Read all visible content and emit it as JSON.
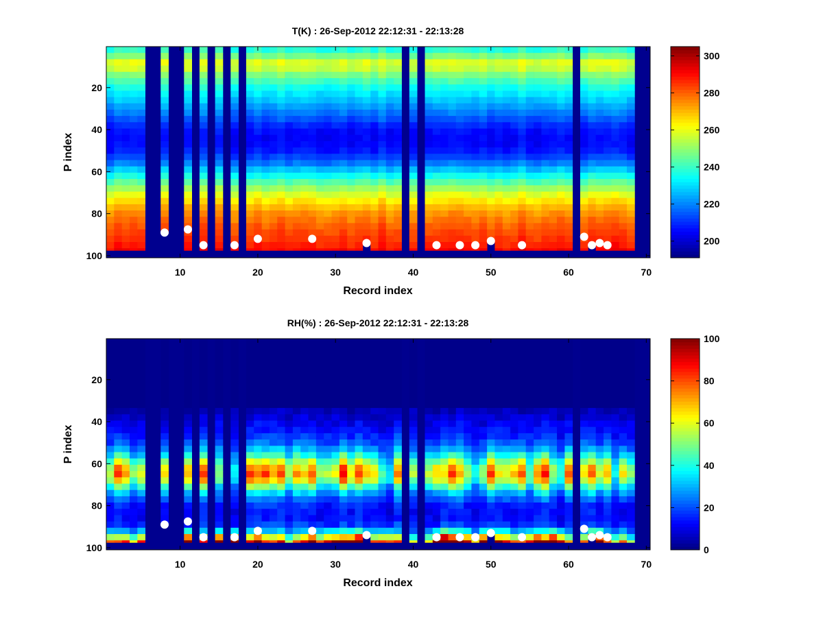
{
  "figure": {
    "background": "#ffffff",
    "missing_color": "#00008f",
    "marker_color": "#ffffff"
  },
  "chart_data": [
    {
      "type": "heatmap",
      "id": "temperature",
      "title": "T(K) : 26-Sep-2012 22:12:31 - 22:13:28",
      "xlabel": "Record index",
      "ylabel": "P index",
      "xlim": [
        0.5,
        70.5
      ],
      "ylim": [
        0.5,
        101
      ],
      "y_reversed": true,
      "xticks": [
        10,
        20,
        30,
        40,
        50,
        60,
        70
      ],
      "yticks": [
        20,
        40,
        60,
        80,
        100
      ],
      "colormap": "jet",
      "clim": [
        191,
        305
      ],
      "colorbar_ticks": [
        200,
        220,
        240,
        260,
        280,
        300
      ],
      "colorbar_location": "right",
      "records": 70,
      "levels": 101,
      "valid_level_max": 97,
      "missing_records": [
        6,
        7,
        9,
        10,
        12,
        14,
        16,
        18,
        39,
        41,
        61,
        69,
        70
      ],
      "profile": {
        "p_index": [
          1,
          5,
          9,
          13,
          20,
          30,
          40,
          45,
          50,
          55,
          60,
          65,
          70,
          75,
          80,
          85,
          90,
          95,
          97
        ],
        "value": [
          236,
          248,
          262,
          250,
          236,
          222,
          207,
          205,
          208,
          216,
          230,
          244,
          257,
          267,
          275,
          280,
          284,
          288,
          291
        ]
      },
      "surface_markers": [
        {
          "record": 8,
          "p_index": 89
        },
        {
          "record": 11,
          "p_index": 87.5
        },
        {
          "record": 13,
          "p_index": 95
        },
        {
          "record": 17,
          "p_index": 95
        },
        {
          "record": 20,
          "p_index": 92
        },
        {
          "record": 27,
          "p_index": 92
        },
        {
          "record": 34,
          "p_index": 94
        },
        {
          "record": 43,
          "p_index": 95
        },
        {
          "record": 46,
          "p_index": 95
        },
        {
          "record": 48,
          "p_index": 95
        },
        {
          "record": 50,
          "p_index": 93
        },
        {
          "record": 54,
          "p_index": 95
        },
        {
          "record": 62,
          "p_index": 91
        },
        {
          "record": 63,
          "p_index": 95
        },
        {
          "record": 64,
          "p_index": 94
        },
        {
          "record": 65,
          "p_index": 95
        }
      ]
    },
    {
      "type": "heatmap",
      "id": "humidity",
      "title": "RH(%) : 26-Sep-2012 22:12:31 - 22:13:28",
      "xlabel": "Record index",
      "ylabel": "P index",
      "xlim": [
        0.5,
        70.5
      ],
      "ylim": [
        0.5,
        101
      ],
      "y_reversed": true,
      "xticks": [
        10,
        20,
        30,
        40,
        50,
        60,
        70
      ],
      "yticks": [
        20,
        40,
        60,
        80,
        100
      ],
      "colormap": "jet",
      "clim": [
        0,
        100
      ],
      "colorbar_ticks": [
        0,
        20,
        40,
        60,
        80,
        100
      ],
      "colorbar_location": "right",
      "records": 70,
      "levels": 101,
      "valid_level_max": 97,
      "missing_records": [
        6,
        7,
        9,
        10,
        12,
        14,
        16,
        18,
        39,
        41,
        61,
        69,
        70
      ],
      "profile": {
        "p_index": [
          1,
          30,
          36,
          40,
          45,
          50,
          55,
          58,
          62,
          66,
          69,
          72,
          76,
          80,
          85,
          90,
          93,
          96,
          97
        ],
        "value": [
          1,
          1,
          6,
          10,
          14,
          20,
          32,
          45,
          60,
          66,
          52,
          36,
          22,
          15,
          12,
          18,
          35,
          62,
          78
        ]
      },
      "surface_markers": [
        {
          "record": 8,
          "p_index": 89
        },
        {
          "record": 11,
          "p_index": 87.5
        },
        {
          "record": 13,
          "p_index": 95
        },
        {
          "record": 17,
          "p_index": 95
        },
        {
          "record": 20,
          "p_index": 92
        },
        {
          "record": 27,
          "p_index": 92
        },
        {
          "record": 34,
          "p_index": 94
        },
        {
          "record": 43,
          "p_index": 95
        },
        {
          "record": 46,
          "p_index": 95
        },
        {
          "record": 48,
          "p_index": 95
        },
        {
          "record": 50,
          "p_index": 93
        },
        {
          "record": 54,
          "p_index": 95
        },
        {
          "record": 62,
          "p_index": 91
        },
        {
          "record": 63,
          "p_index": 95
        },
        {
          "record": 64,
          "p_index": 94
        },
        {
          "record": 65,
          "p_index": 95
        }
      ]
    }
  ]
}
